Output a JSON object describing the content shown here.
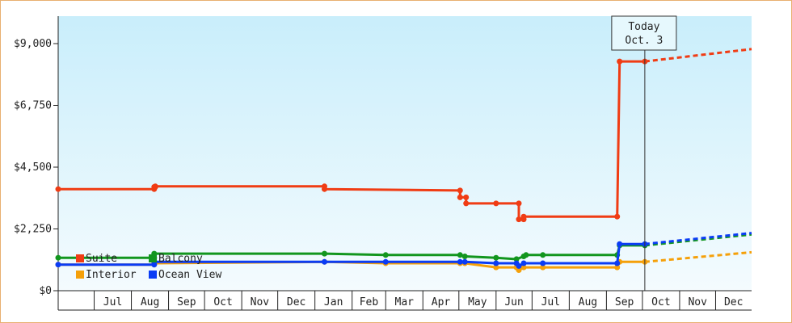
{
  "chart_data": {
    "type": "line",
    "title": "",
    "xlabel": "",
    "ylabel": "",
    "ylim": [
      0,
      10000
    ],
    "y_ticks": [
      {
        "value": 0,
        "label": "$0"
      },
      {
        "value": 2250,
        "label": "$2,250"
      },
      {
        "value": 4500,
        "label": "$4,500"
      },
      {
        "value": 6750,
        "label": "$6,750"
      },
      {
        "value": 9000,
        "label": "$9,000"
      }
    ],
    "x_range": [
      "2016-06-01",
      "2017-12-31"
    ],
    "x_ticks": [
      {
        "label": "Jul",
        "start": "2016-07-01",
        "end": "2016-08-01"
      },
      {
        "label": "Aug",
        "start": "2016-08-01",
        "end": "2016-09-01"
      },
      {
        "label": "Sep",
        "start": "2016-09-01",
        "end": "2016-10-01"
      },
      {
        "label": "Oct",
        "start": "2016-10-01",
        "end": "2016-11-01"
      },
      {
        "label": "Nov",
        "start": "2016-11-01",
        "end": "2016-12-01"
      },
      {
        "label": "Dec",
        "start": "2016-12-01",
        "end": "2017-01-01"
      },
      {
        "label": "Jan",
        "start": "2017-01-01",
        "end": "2017-02-01"
      },
      {
        "label": "Feb",
        "start": "2017-02-01",
        "end": "2017-03-01"
      },
      {
        "label": "Mar",
        "start": "2017-03-01",
        "end": "2017-04-01"
      },
      {
        "label": "Apr",
        "start": "2017-04-01",
        "end": "2017-05-01"
      },
      {
        "label": "May",
        "start": "2017-05-01",
        "end": "2017-06-01"
      },
      {
        "label": "Jun",
        "start": "2017-06-01",
        "end": "2017-07-01"
      },
      {
        "label": "Jul",
        "start": "2017-07-01",
        "end": "2017-08-01"
      },
      {
        "label": "Aug",
        "start": "2017-08-01",
        "end": "2017-09-01"
      },
      {
        "label": "Sep",
        "start": "2017-09-01",
        "end": "2017-10-01"
      },
      {
        "label": "Oct",
        "start": "2017-10-01",
        "end": "2017-11-01"
      },
      {
        "label": "Nov",
        "start": "2017-11-01",
        "end": "2017-12-01"
      },
      {
        "label": "Dec",
        "start": "2017-12-01",
        "end": "2018-01-01"
      }
    ],
    "today": {
      "date": "2017-10-03",
      "label_line1": "Today",
      "label_line2": "Oct. 3"
    },
    "legend": {
      "placement": "bottom-left"
    },
    "series": [
      {
        "name": "Suite",
        "color": "#f03c14",
        "points": [
          {
            "x": "2016-06-01",
            "y": 3700
          },
          {
            "x": "2016-08-20",
            "y": 3700
          },
          {
            "x": "2016-08-20",
            "y": 3780
          },
          {
            "x": "2016-08-21",
            "y": 3780
          },
          {
            "x": "2016-08-21",
            "y": 3800
          },
          {
            "x": "2017-01-09",
            "y": 3800
          },
          {
            "x": "2017-01-09",
            "y": 3700
          },
          {
            "x": "2017-05-02",
            "y": 3650
          },
          {
            "x": "2017-05-02",
            "y": 3400
          },
          {
            "x": "2017-05-07",
            "y": 3400
          },
          {
            "x": "2017-05-07",
            "y": 3180
          },
          {
            "x": "2017-06-01",
            "y": 3180
          },
          {
            "x": "2017-06-20",
            "y": 3180
          },
          {
            "x": "2017-06-20",
            "y": 2600
          },
          {
            "x": "2017-06-24",
            "y": 2600
          },
          {
            "x": "2017-06-24",
            "y": 2700
          },
          {
            "x": "2017-09-10",
            "y": 2700
          },
          {
            "x": "2017-09-12",
            "y": 8350
          },
          {
            "x": "2017-10-03",
            "y": 8350
          }
        ],
        "forecast": [
          {
            "x": "2017-10-03",
            "y": 8350
          },
          {
            "x": "2017-12-31",
            "y": 8800
          }
        ]
      },
      {
        "name": "Balcony",
        "color": "#12961e",
        "points": [
          {
            "x": "2016-06-01",
            "y": 1200
          },
          {
            "x": "2016-08-20",
            "y": 1200
          },
          {
            "x": "2016-08-20",
            "y": 1350
          },
          {
            "x": "2017-01-09",
            "y": 1350
          },
          {
            "x": "2017-03-01",
            "y": 1300
          },
          {
            "x": "2017-05-02",
            "y": 1300
          },
          {
            "x": "2017-05-06",
            "y": 1250
          },
          {
            "x": "2017-06-01",
            "y": 1200
          },
          {
            "x": "2017-06-18",
            "y": 1150
          },
          {
            "x": "2017-06-24",
            "y": 1250
          },
          {
            "x": "2017-06-26",
            "y": 1300
          },
          {
            "x": "2017-07-10",
            "y": 1300
          },
          {
            "x": "2017-09-10",
            "y": 1300
          },
          {
            "x": "2017-09-12",
            "y": 1650
          },
          {
            "x": "2017-10-03",
            "y": 1650
          }
        ],
        "forecast": [
          {
            "x": "2017-10-03",
            "y": 1650
          },
          {
            "x": "2017-12-31",
            "y": 2050
          }
        ]
      },
      {
        "name": "Interior",
        "color": "#f5a00a",
        "points": [
          {
            "x": "2016-06-01",
            "y": 950
          },
          {
            "x": "2016-08-20",
            "y": 950
          },
          {
            "x": "2016-08-20",
            "y": 1000
          },
          {
            "x": "2017-01-09",
            "y": 1050
          },
          {
            "x": "2017-03-01",
            "y": 1000
          },
          {
            "x": "2017-05-02",
            "y": 1000
          },
          {
            "x": "2017-05-06",
            "y": 1000
          },
          {
            "x": "2017-06-01",
            "y": 850
          },
          {
            "x": "2017-06-18",
            "y": 850
          },
          {
            "x": "2017-06-20",
            "y": 750
          },
          {
            "x": "2017-06-24",
            "y": 850
          },
          {
            "x": "2017-07-10",
            "y": 850
          },
          {
            "x": "2017-09-10",
            "y": 850
          },
          {
            "x": "2017-09-12",
            "y": 1050
          },
          {
            "x": "2017-10-03",
            "y": 1050
          }
        ],
        "forecast": [
          {
            "x": "2017-10-03",
            "y": 1050
          },
          {
            "x": "2017-12-31",
            "y": 1400
          }
        ]
      },
      {
        "name": "Ocean View",
        "color": "#0a3cf5",
        "points": [
          {
            "x": "2016-06-01",
            "y": 950
          },
          {
            "x": "2016-08-20",
            "y": 950
          },
          {
            "x": "2016-08-20",
            "y": 1050
          },
          {
            "x": "2017-01-09",
            "y": 1050
          },
          {
            "x": "2017-03-01",
            "y": 1050
          },
          {
            "x": "2017-05-02",
            "y": 1050
          },
          {
            "x": "2017-05-06",
            "y": 1050
          },
          {
            "x": "2017-06-01",
            "y": 1000
          },
          {
            "x": "2017-06-18",
            "y": 1000
          },
          {
            "x": "2017-06-20",
            "y": 900
          },
          {
            "x": "2017-06-24",
            "y": 1000
          },
          {
            "x": "2017-07-10",
            "y": 1000
          },
          {
            "x": "2017-09-10",
            "y": 1000
          },
          {
            "x": "2017-09-12",
            "y": 1700
          },
          {
            "x": "2017-10-03",
            "y": 1700
          }
        ],
        "forecast": [
          {
            "x": "2017-10-03",
            "y": 1700
          },
          {
            "x": "2017-12-31",
            "y": 2100
          }
        ]
      }
    ]
  }
}
